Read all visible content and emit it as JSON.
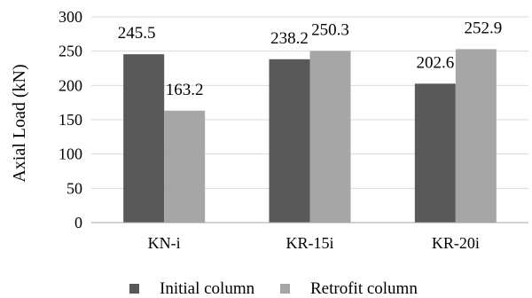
{
  "chart_data": {
    "type": "bar",
    "categories": [
      "KN-i",
      "KR-15i",
      "KR-20i"
    ],
    "series": [
      {
        "name": "Initial column",
        "values": [
          245.5,
          238.2,
          202.6
        ],
        "color": "#595959"
      },
      {
        "name": "Retrofit column",
        "values": [
          163.2,
          250.3,
          252.9
        ],
        "color": "#a6a6a6"
      }
    ],
    "value_labels": [
      [
        "245.5",
        "238.2",
        "202.6"
      ],
      [
        "163.2",
        "250.3",
        "252.9"
      ]
    ],
    "ylabel": "Axial Load (kN)",
    "xlabel": "",
    "ylim": [
      0,
      300
    ],
    "yticks": [
      "0",
      "50",
      "100",
      "150",
      "200",
      "250",
      "300"
    ],
    "grid": true,
    "legend_position": "bottom"
  }
}
